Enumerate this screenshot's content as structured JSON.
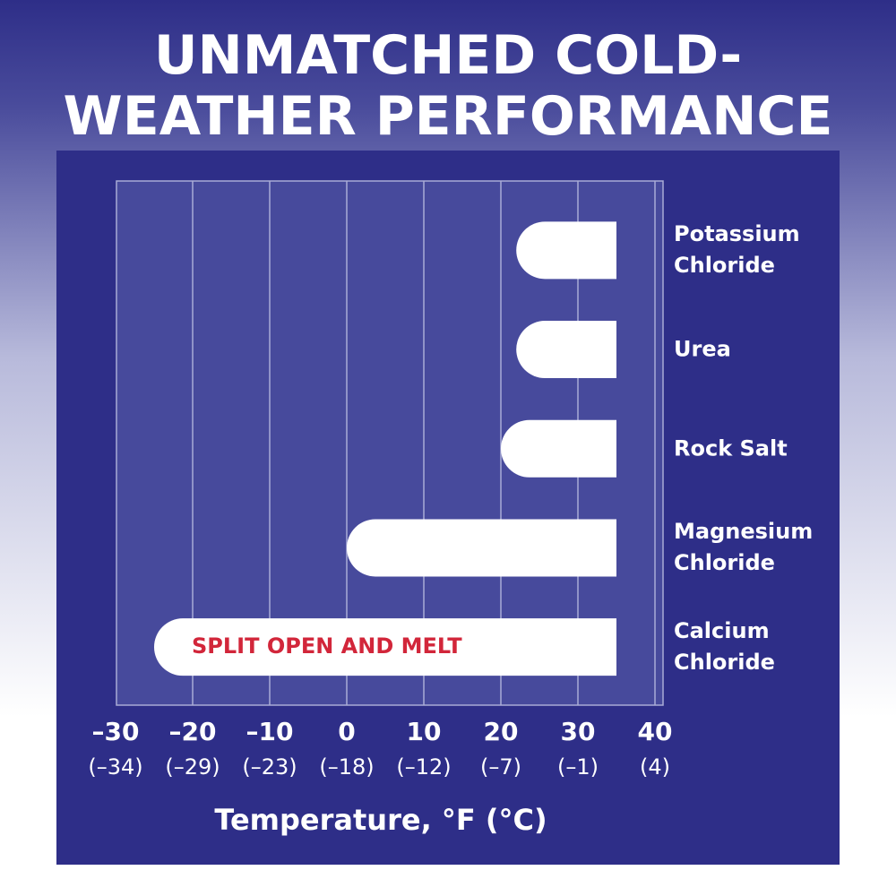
{
  "chart_data": {
    "type": "range-bar",
    "title": "UNMATCHED COLD-WEATHER PERFORMANCE",
    "categories": [
      "Potassium Chloride",
      "Urea",
      "Rock Salt",
      "Magnesium Chloride",
      "Calcium Chloride"
    ],
    "low": [
      22,
      22,
      20,
      0,
      -25
    ],
    "high": [
      35,
      35,
      35,
      35,
      35
    ],
    "color": "#ffffff",
    "annotation": "SPLIT OPEN AND MELT",
    "annotation_color": "#d2263a",
    "xlim": [
      -30,
      40
    ],
    "xticks": [
      {
        "value": -30,
        "label": "–30"
      },
      {
        "value": -20,
        "label": "–20"
      },
      {
        "value": -10,
        "label": "–10"
      },
      0,
      10,
      20,
      30,
      40
    ],
    "xtick_sublabels": [
      "(–34)",
      "(–29)",
      "(–23)",
      "(–18)",
      "(–12)",
      "(–7)",
      "(–1)",
      "(4)"
    ],
    "xlabel": "Temperature, °F (°C)",
    "grid": true
  }
}
